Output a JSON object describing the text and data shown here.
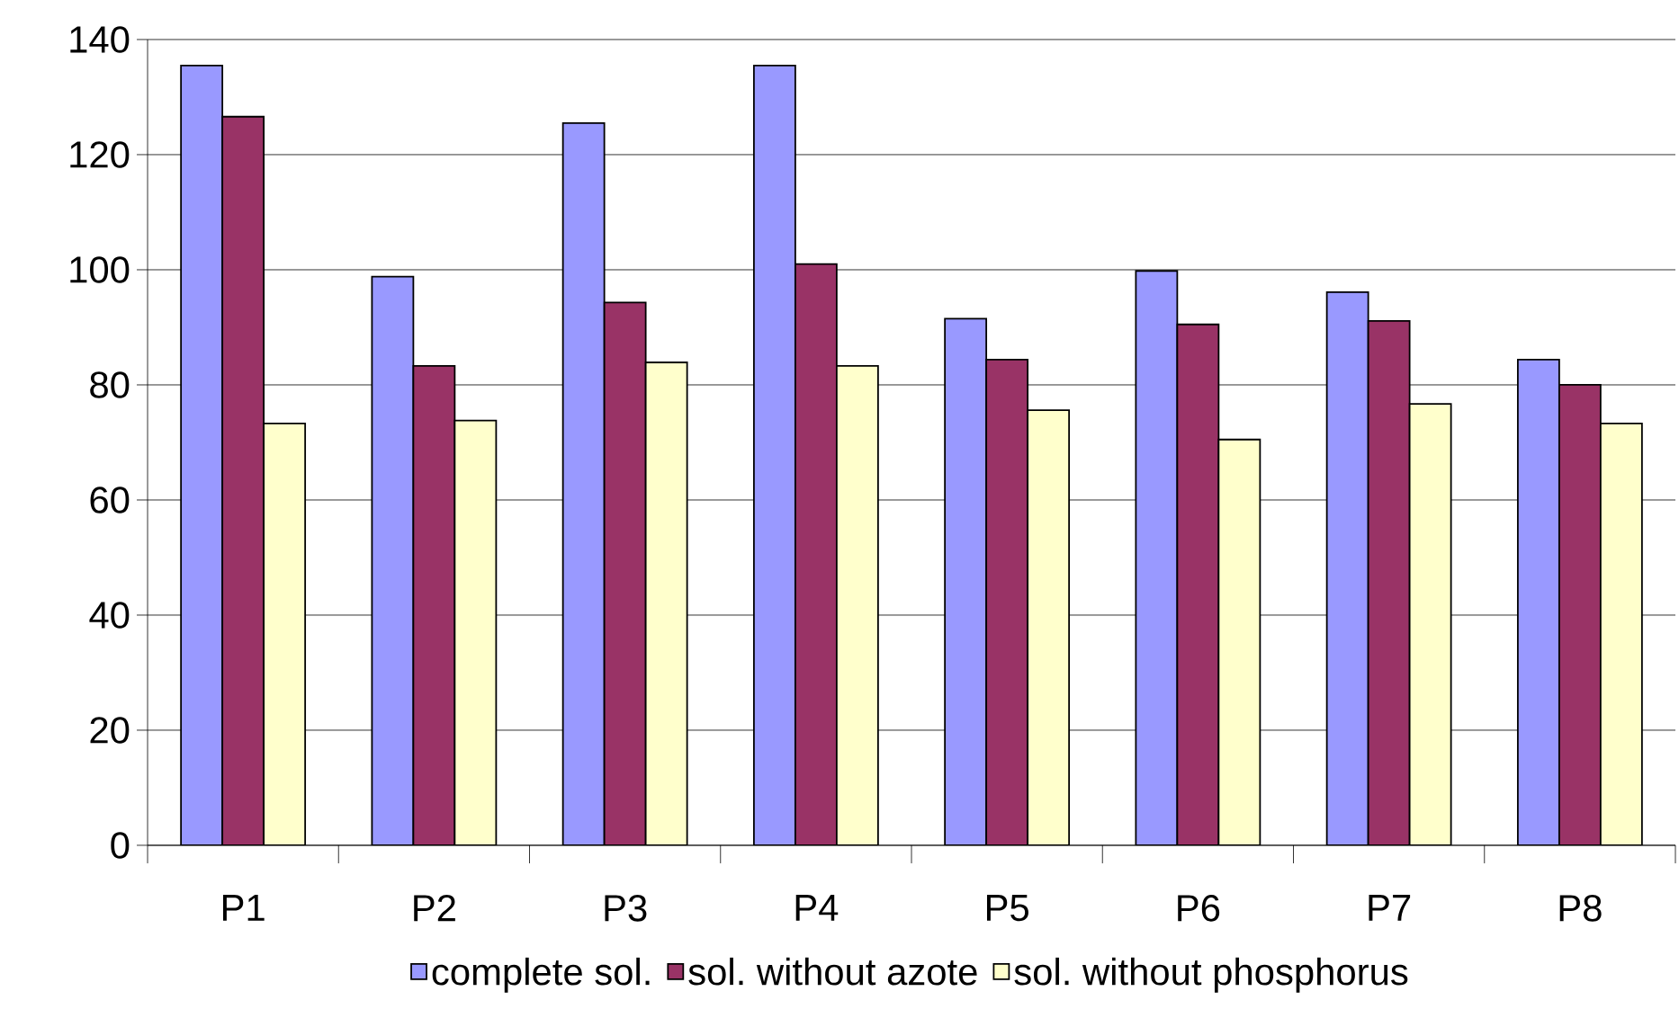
{
  "chart_data": {
    "type": "bar",
    "categories": [
      "P1",
      "P2",
      "P3",
      "P4",
      "P5",
      "P6",
      "P7",
      "P8"
    ],
    "series": [
      {
        "name": "complete sol.",
        "color": "#9999ff",
        "values": [
          135.5,
          98.8,
          125.5,
          135.5,
          91.5,
          99.8,
          96.1,
          84.4
        ]
      },
      {
        "name": "sol. without azote",
        "color": "#993366",
        "values": [
          126.6,
          83.3,
          94.3,
          101,
          84.4,
          90.5,
          91.1,
          80
        ]
      },
      {
        "name": "sol. without phosphorus",
        "color": "#ffffcc",
        "values": [
          73.3,
          73.8,
          83.9,
          83.3,
          75.6,
          70.5,
          76.7,
          73.3
        ]
      }
    ],
    "ylim": [
      0,
      140
    ],
    "yticks": [
      0,
      20,
      40,
      60,
      80,
      100,
      120,
      140
    ],
    "grid": "y",
    "legend": "bottom"
  }
}
